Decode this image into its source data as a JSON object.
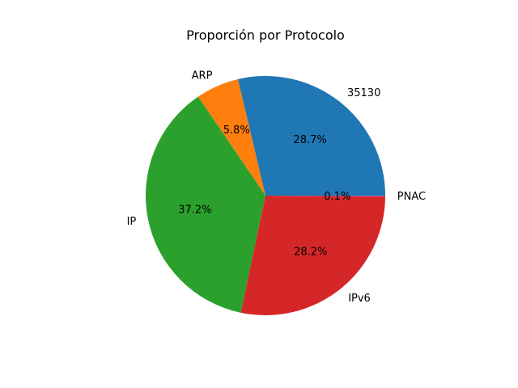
{
  "chart_data": {
    "type": "pie",
    "title": "Proporción por Protocolo",
    "slices": [
      {
        "label": "35130",
        "value": 28.7,
        "pct_label": "28.7%",
        "color": "#1f77b4"
      },
      {
        "label": "ARP",
        "value": 5.8,
        "pct_label": "5.8%",
        "color": "#ff7f0e"
      },
      {
        "label": "IP",
        "value": 37.2,
        "pct_label": "37.2%",
        "color": "#2ca02c"
      },
      {
        "label": "IPv6",
        "value": 28.2,
        "pct_label": "28.2%",
        "color": "#d62728"
      },
      {
        "label": "PNAC",
        "value": 0.1,
        "pct_label": "0.1%",
        "color": "#9467bd"
      }
    ],
    "start_angle_deg": 0,
    "direction": "counterclockwise"
  }
}
